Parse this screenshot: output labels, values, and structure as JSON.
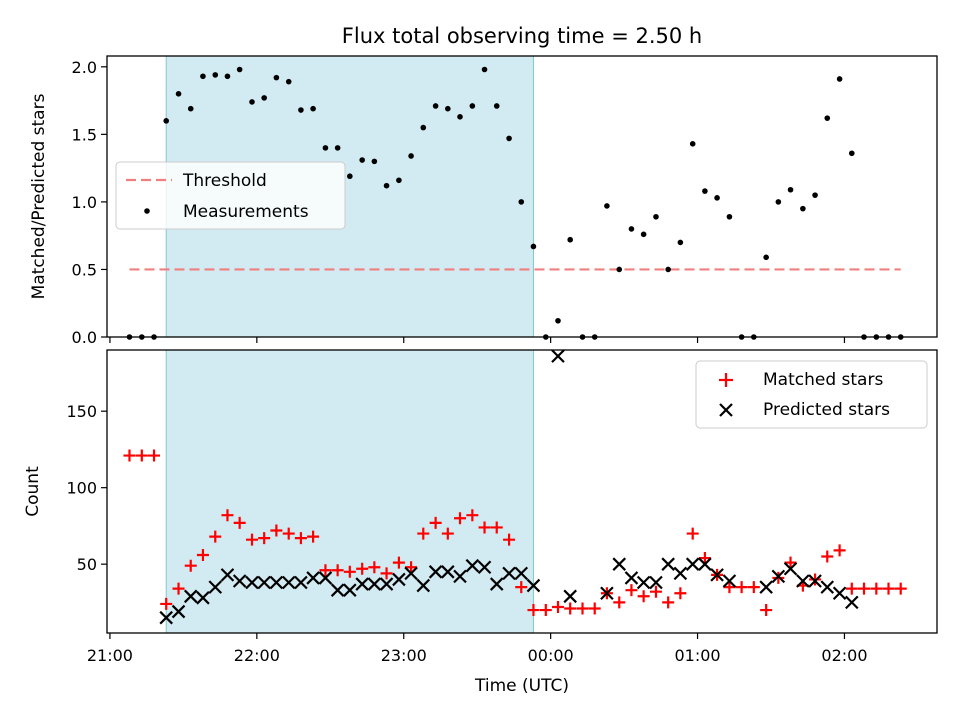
{
  "chart_data": [
    {
      "type": "scatter",
      "title": "Flux total observing time = 2.50 h",
      "xlabel": "",
      "ylabel": "Matched/Predicted stars",
      "x_unit": "time of day (UTC), hours; values past 24 are after midnight",
      "xlim": [
        20.98,
        26.63
      ],
      "ylim": [
        0,
        2.08
      ],
      "yticks": [
        0.0,
        0.5,
        1.0,
        1.5,
        2.0
      ],
      "ytick_labels": [
        "0.0",
        "0.5",
        "1.0",
        "1.5",
        "2.0"
      ],
      "shaded_interval": [
        21.383,
        23.883
      ],
      "shade_color": "#add8e6",
      "legend_position": "center-left",
      "legend": [
        {
          "label": "Threshold",
          "style": "dashed-line",
          "color": "#f08080"
        },
        {
          "label": "Measurements",
          "style": "dot",
          "color": "#000000"
        }
      ],
      "threshold": {
        "name": "Threshold",
        "y": 0.5,
        "x_range": [
          21.133,
          26.383
        ],
        "color": "#f08080"
      },
      "series": [
        {
          "name": "Measurements",
          "color": "#000000",
          "x": [
            21.133,
            21.217,
            21.3,
            21.383,
            21.467,
            21.55,
            21.633,
            21.717,
            21.8,
            21.883,
            21.967,
            22.05,
            22.133,
            22.217,
            22.3,
            22.383,
            22.467,
            22.55,
            22.633,
            22.717,
            22.8,
            22.883,
            22.967,
            23.05,
            23.133,
            23.217,
            23.3,
            23.383,
            23.467,
            23.55,
            23.633,
            23.717,
            23.8,
            23.883,
            23.967,
            24.05,
            24.133,
            24.217,
            24.3,
            24.383,
            24.467,
            24.55,
            24.633,
            24.717,
            24.8,
            24.883,
            24.967,
            25.05,
            25.133,
            25.217,
            25.3,
            25.383,
            25.467,
            25.55,
            25.633,
            25.717,
            25.8,
            25.883,
            25.967,
            26.05,
            26.133,
            26.217,
            26.3,
            26.383
          ],
          "y": [
            0,
            0,
            0,
            1.6,
            1.8,
            1.69,
            1.93,
            1.94,
            1.93,
            1.98,
            1.74,
            1.77,
            1.92,
            1.89,
            1.68,
            1.69,
            1.4,
            1.4,
            1.19,
            1.31,
            1.3,
            1.12,
            1.16,
            1.34,
            1.55,
            1.71,
            1.69,
            1.63,
            1.71,
            1.98,
            1.71,
            1.47,
            1.0,
            0.67,
            0,
            0.12,
            0.72,
            0,
            0,
            0.97,
            0.5,
            0.8,
            0.76,
            0.89,
            0.5,
            0.7,
            1.43,
            1.08,
            1.03,
            0.89,
            0,
            0,
            0.59,
            1.0,
            1.09,
            0.95,
            1.05,
            1.62,
            1.91,
            1.36,
            0,
            0,
            0,
            0
          ]
        }
      ]
    },
    {
      "type": "scatter",
      "title": "",
      "xlabel": "Time (UTC)",
      "ylabel": "Count",
      "xlim": [
        20.98,
        26.63
      ],
      "ylim": [
        5,
        190
      ],
      "xticks": [
        21,
        22,
        23,
        24,
        25,
        26
      ],
      "xtick_labels": [
        "21:00",
        "22:00",
        "23:00",
        "00:00",
        "01:00",
        "02:00"
      ],
      "yticks": [
        50,
        100,
        150
      ],
      "ytick_labels": [
        "50",
        "100",
        "150"
      ],
      "shaded_interval": [
        21.383,
        23.883
      ],
      "shade_color": "#add8e6",
      "legend_position": "upper-right",
      "legend": [
        {
          "label": "Matched stars",
          "style": "plus",
          "color": "#ff0000"
        },
        {
          "label": "Predicted stars",
          "style": "x",
          "color": "#000000"
        }
      ],
      "series": [
        {
          "name": "Matched stars",
          "marker": "plus",
          "color": "#ff0000",
          "x": [
            21.133,
            21.217,
            21.3,
            21.383,
            21.467,
            21.55,
            21.633,
            21.717,
            21.8,
            21.883,
            21.967,
            22.05,
            22.133,
            22.217,
            22.3,
            22.383,
            22.467,
            22.55,
            22.633,
            22.717,
            22.8,
            22.883,
            22.967,
            23.05,
            23.133,
            23.217,
            23.3,
            23.383,
            23.467,
            23.55,
            23.633,
            23.717,
            23.8,
            23.883,
            23.967,
            24.05,
            24.133,
            24.217,
            24.3,
            24.383,
            24.467,
            24.55,
            24.633,
            24.717,
            24.8,
            24.883,
            24.967,
            25.05,
            25.133,
            25.217,
            25.3,
            25.383,
            25.467,
            25.55,
            25.633,
            25.717,
            25.8,
            25.883,
            25.967,
            26.05,
            26.133,
            26.217,
            26.3,
            26.383
          ],
          "y": [
            121,
            121,
            121,
            24,
            34,
            49,
            56,
            68,
            82,
            77,
            66,
            67,
            72,
            70,
            67,
            68,
            46,
            46,
            45,
            47,
            48,
            44,
            51,
            48,
            70,
            77,
            70,
            80,
            82,
            74,
            74,
            66,
            35,
            20,
            20,
            22,
            21,
            21,
            21,
            31,
            25,
            33,
            29,
            32,
            25,
            31,
            70,
            54,
            43,
            35,
            35,
            35,
            20,
            41,
            51,
            36,
            40,
            55,
            59,
            34,
            34,
            34,
            34,
            34
          ]
        },
        {
          "name": "Predicted stars",
          "marker": "x",
          "color": "#000000",
          "x": [
            21.383,
            21.467,
            21.55,
            21.633,
            21.717,
            21.8,
            21.883,
            21.967,
            22.05,
            22.133,
            22.217,
            22.3,
            22.383,
            22.467,
            22.55,
            22.633,
            22.717,
            22.8,
            22.883,
            22.967,
            23.05,
            23.133,
            23.217,
            23.3,
            23.383,
            23.467,
            23.55,
            23.633,
            23.717,
            23.8,
            23.883,
            24.05,
            24.133,
            24.383,
            24.467,
            24.55,
            24.633,
            24.717,
            24.8,
            24.883,
            24.967,
            25.05,
            25.133,
            25.217,
            25.467,
            25.55,
            25.633,
            25.717,
            25.8,
            25.883,
            25.967,
            26.05
          ],
          "y": [
            15,
            19,
            29,
            28,
            35,
            43,
            39,
            38,
            38,
            38,
            38,
            38,
            41,
            41,
            33,
            33,
            37,
            37,
            37,
            40,
            44,
            36,
            45,
            45,
            42,
            49,
            48,
            37,
            44,
            44,
            36,
            186,
            29,
            31,
            50,
            41,
            38,
            38,
            50,
            44,
            50,
            50,
            43,
            39,
            35,
            42,
            47,
            39,
            39,
            35,
            31,
            25
          ]
        }
      ]
    }
  ]
}
